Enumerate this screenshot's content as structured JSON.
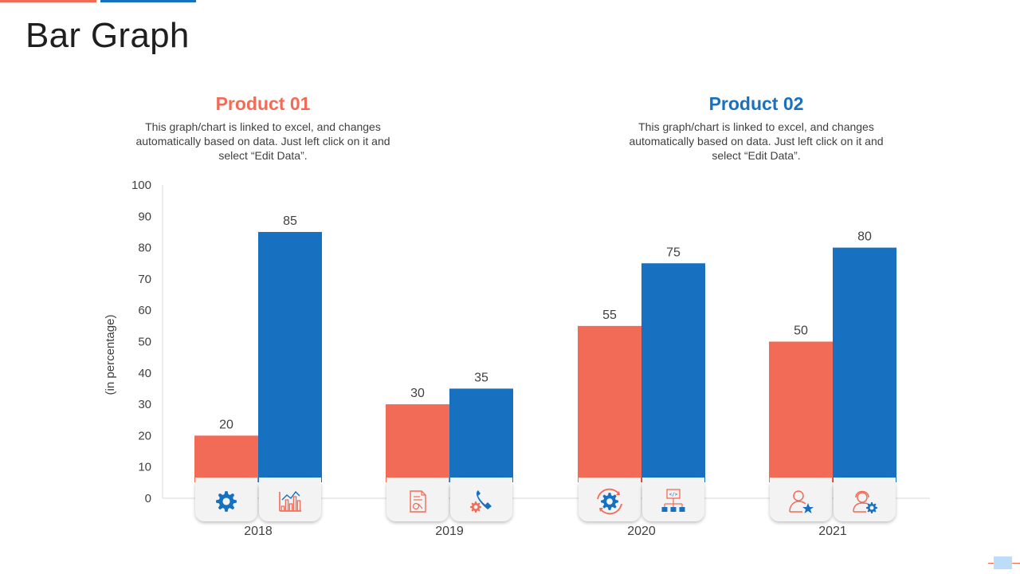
{
  "page": {
    "title": "Bar Graph"
  },
  "colors": {
    "product1": "#F26B56",
    "product2": "#1770C0",
    "accent_red": "#F26B56",
    "accent_blue": "#1770C0"
  },
  "products": [
    {
      "title": "Product 01",
      "description": "This graph/chart is linked to excel, and changes automatically based on data. Just left click on it and select “Edit Data”."
    },
    {
      "title": "Product 02",
      "description": "This graph/chart is linked to excel, and changes automatically based on data. Just left click on it and select “Edit Data”."
    }
  ],
  "chart_data": {
    "type": "bar",
    "title": "",
    "xlabel": "",
    "ylabel": "(in percentage)",
    "ylim": [
      0,
      100
    ],
    "yticks": [
      0,
      10,
      20,
      30,
      40,
      50,
      60,
      70,
      80,
      90,
      100
    ],
    "categories": [
      "2018",
      "2019",
      "2020",
      "2021"
    ],
    "series": [
      {
        "name": "Product 01",
        "values": [
          20,
          30,
          55,
          50
        ],
        "color": "#F26B56"
      },
      {
        "name": "Product 02",
        "values": [
          85,
          35,
          75,
          80
        ],
        "color": "#1770C0"
      }
    ],
    "icons": [
      [
        "gear-icon",
        "bar-chart-icon"
      ],
      [
        "document-icon",
        "phone-gear-icon"
      ],
      [
        "gear-refresh-icon",
        "network-icon"
      ],
      [
        "user-star-icon",
        "user-gear-icon"
      ]
    ]
  }
}
